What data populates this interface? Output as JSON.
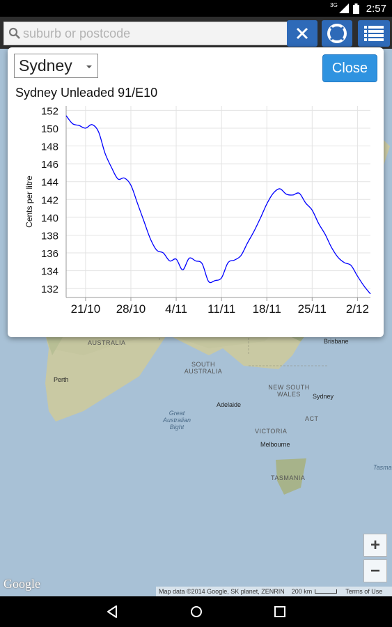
{
  "status_bar": {
    "signal": "3G",
    "time": "2:57"
  },
  "search": {
    "placeholder": "suburb or postcode",
    "value": ""
  },
  "toolbar": {
    "clear_icon": "close-icon",
    "locate_icon": "lifebuoy-icon",
    "list_icon": "list-icon"
  },
  "dialog": {
    "city": "Sydney",
    "close_label": "Close"
  },
  "chart_data": {
    "type": "line",
    "title": "Sydney Unleaded 91/E10",
    "xlabel": "",
    "ylabel": "Cents per litre",
    "ylim": [
      131,
      152.5
    ],
    "yticks": [
      "152",
      "150",
      "148",
      "146",
      "144",
      "142",
      "140",
      "138",
      "136",
      "134",
      "132"
    ],
    "xtick_labels": [
      "21/10",
      "28/10",
      "4/11",
      "11/11",
      "18/11",
      "25/11",
      "2/12"
    ],
    "grid": true,
    "line_color": "#0000ff",
    "series": [
      {
        "x": [
          "18/10",
          "19/10",
          "20/10",
          "21/10",
          "22/10",
          "23/10",
          "24/10",
          "25/10",
          "26/10",
          "27/10",
          "28/10",
          "29/10",
          "30/10",
          "31/10",
          "1/11",
          "2/11",
          "3/11",
          "4/11",
          "5/11",
          "6/11",
          "7/11",
          "8/11",
          "9/11",
          "10/11",
          "11/11",
          "12/11",
          "13/11",
          "14/11",
          "15/11",
          "16/11",
          "17/11",
          "18/11",
          "19/11",
          "20/11",
          "21/11",
          "22/11",
          "23/11",
          "24/11",
          "25/11",
          "26/11",
          "27/11",
          "28/11",
          "29/11",
          "30/11",
          "1/12",
          "2/12",
          "3/12",
          "4/12"
        ],
        "values": [
          151.4,
          150.5,
          150.3,
          150.0,
          150.4,
          149.6,
          147.2,
          145.6,
          144.3,
          144.4,
          143.6,
          141.6,
          139.6,
          137.6,
          136.3,
          136.0,
          135.1,
          135.3,
          134.1,
          135.4,
          135.1,
          134.8,
          132.8,
          132.9,
          133.2,
          134.9,
          135.2,
          135.7,
          137.1,
          138.4,
          139.9,
          141.5,
          142.7,
          143.2,
          142.6,
          142.5,
          142.7,
          141.6,
          140.8,
          139.3,
          138.1,
          136.6,
          135.5,
          134.9,
          134.6,
          133.4,
          132.3,
          131.4
        ]
      }
    ]
  },
  "map": {
    "labels": [
      "AUSTRALIA",
      "SOUTH AUSTRALIA",
      "NEW SOUTH WALES",
      "VICTORIA",
      "TASMANIA",
      "ACT"
    ],
    "cities": [
      "Perth",
      "Adelaide",
      "Melbourne",
      "Sydney",
      "Brisbane"
    ],
    "water": [
      "Great Australian Bight",
      "Tasma"
    ],
    "zoom_in": "+",
    "zoom_out": "−",
    "logo": "Google",
    "attribution": "Map data ©2014 Google, SK planet, ZENRIN",
    "scale": "200 km",
    "terms": "Terms of Use"
  }
}
